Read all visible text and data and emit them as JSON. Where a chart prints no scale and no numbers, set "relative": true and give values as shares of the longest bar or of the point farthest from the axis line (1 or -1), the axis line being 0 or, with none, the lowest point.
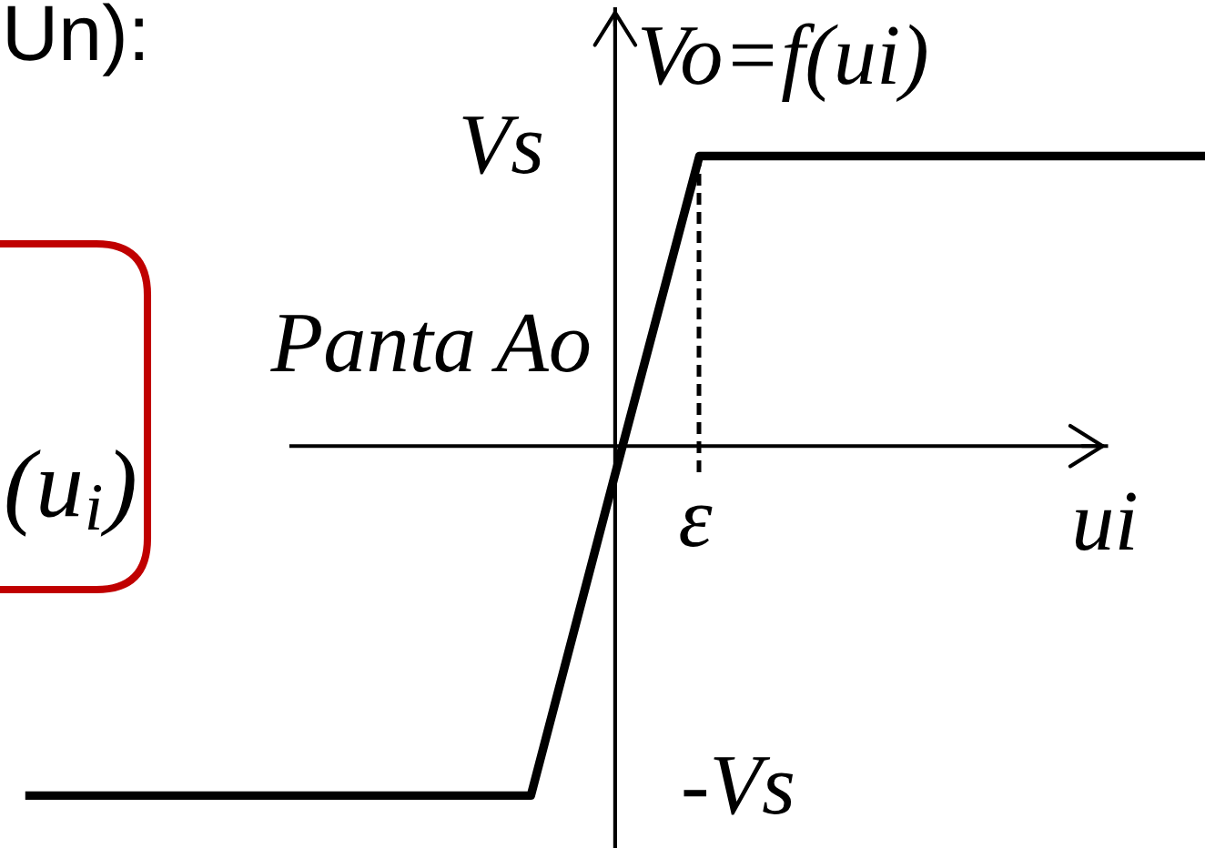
{
  "chart_data": {
    "type": "line",
    "relative": true,
    "xlabel": "ui",
    "ylabel": "Vo=f(ui)",
    "categories": [
      null,
      null,
      null,
      null,
      null,
      null,
      null,
      null,
      null,
      null,
      null,
      null,
      null,
      null,
      null
    ],
    "series": [
      {
        "color": "#000000",
        "line_style": "solid",
        "values": [
          -1,
          -1,
          -1,
          -1,
          -1,
          -1,
          -1,
          -0.08,
          0.83,
          0.83,
          0.83,
          0.83,
          0.83,
          0.83,
          0.83
        ]
      }
    ],
    "annotations": [
      "Un):",
      "(u$_{i}$)",
      "ε",
      "Vs",
      "-Vs",
      "Panta Ao"
    ]
  }
}
